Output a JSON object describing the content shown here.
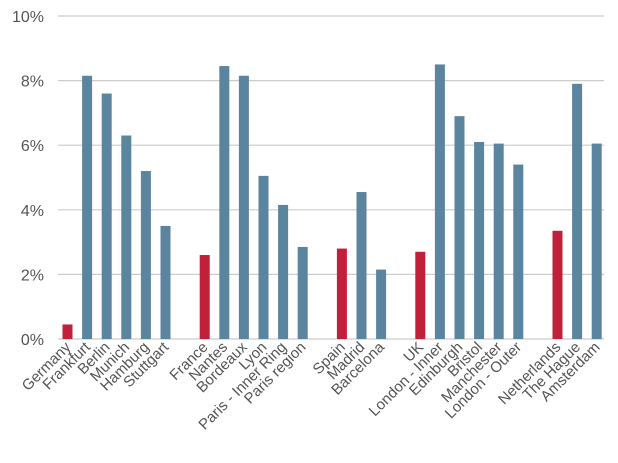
{
  "chart_data": {
    "type": "bar",
    "title": "",
    "xlabel": "",
    "ylabel": "",
    "ylim": [
      0,
      10
    ],
    "yticks": [
      "0%",
      "2%",
      "4%",
      "6%",
      "8%",
      "10%"
    ],
    "grid": true,
    "legend": "none",
    "colors": {
      "country": "#c0203a",
      "city": "#5b849e"
    },
    "categories": [
      "Germany",
      "Frankfurt",
      "Berlin",
      "Munich",
      "Hamburg",
      "Stuttgart",
      "",
      "France",
      "Nantes",
      "Bordeaux",
      "Lyon",
      "Paris - Inner Ring",
      "Paris region",
      "",
      "Spain",
      "Madrid",
      "Barcelona",
      "",
      "UK",
      "London - Inner",
      "Edinburgh",
      "Bristol",
      "Manchester",
      "London - Outer",
      "",
      "Netherlands",
      "The Hague",
      "Amsterdam"
    ],
    "values": [
      0.45,
      8.15,
      7.6,
      6.3,
      5.2,
      3.5,
      null,
      2.6,
      8.45,
      8.15,
      5.05,
      4.15,
      2.85,
      null,
      2.8,
      4.55,
      2.15,
      null,
      2.7,
      8.5,
      6.9,
      6.1,
      6.05,
      5.4,
      null,
      3.35,
      7.9,
      6.05
    ],
    "kind": [
      "country",
      "city",
      "city",
      "city",
      "city",
      "city",
      "gap",
      "country",
      "city",
      "city",
      "city",
      "city",
      "city",
      "gap",
      "country",
      "city",
      "city",
      "gap",
      "country",
      "city",
      "city",
      "city",
      "city",
      "city",
      "gap",
      "country",
      "city",
      "city"
    ]
  }
}
